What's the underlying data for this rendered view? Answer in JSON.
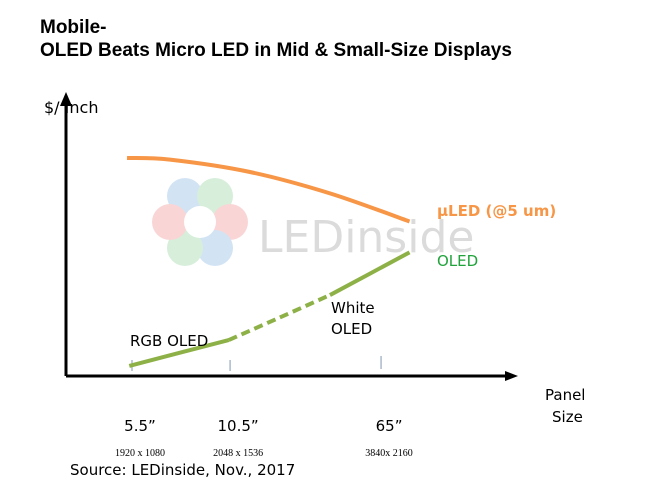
{
  "title_line1": "Mobile-",
  "title_line2": "OLED Beats Micro LED in Mid & Small-Size Displays",
  "watermark": "LEDinside",
  "source": "Source: LEDinside, Nov., 2017",
  "colors": {
    "uled": "#F79646",
    "oled_line": "#8DB147",
    "oled_label": "#1FA33A",
    "axis": "#000000",
    "tick": "#7F97B2"
  },
  "chart_data": {
    "type": "line",
    "title": "OLED Beats Micro LED in Mid & Small-Size Displays",
    "ylabel": "$/ Inch",
    "xlabel_line1": "Panel",
    "xlabel_line2": "Size",
    "xlim": [
      0,
      100
    ],
    "ylim": [
      0,
      100
    ],
    "ticks": [
      {
        "x": 14.6,
        "label": "5.5”",
        "resolution": "1920 x 1080"
      },
      {
        "x": 36.3,
        "label": "10.5”",
        "resolution": "2048 x 1536"
      },
      {
        "x": 69.7,
        "label": "65”",
        "resolution": "3840x 2160"
      }
    ],
    "series": [
      {
        "name": "μLED (@5 um)",
        "color": "#F79646",
        "points": [
          [
            13.5,
            77.6
          ],
          [
            23,
            77
          ],
          [
            40.7,
            72.6
          ],
          [
            58.4,
            65
          ],
          [
            76,
            55
          ]
        ]
      },
      {
        "name": "OLED",
        "color": "#8DB147",
        "dashed_range": [
          36,
          58.4
        ],
        "points": [
          [
            14,
            3.6
          ],
          [
            36,
            12.8
          ],
          [
            47,
            20.6
          ],
          [
            58.4,
            28.8
          ],
          [
            76,
            44
          ]
        ]
      }
    ],
    "annotations": [
      {
        "text": "RGB OLED",
        "x": 14.6,
        "y": 11
      },
      {
        "text": "White",
        "x": 58.5,
        "y": 24
      },
      {
        "text": "OLED",
        "x": 58.5,
        "y": 16
      }
    ]
  }
}
